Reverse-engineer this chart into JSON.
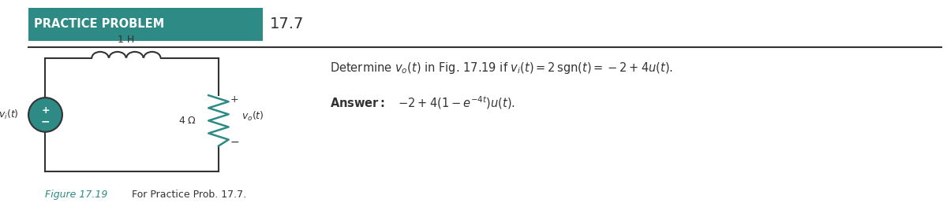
{
  "title_bg_text": "PRACTICE PROBLEM",
  "title_num": "17.7",
  "title_bg_color": "#2d8a84",
  "title_text_color": "#ffffff",
  "title_num_color": "#333333",
  "line_color": "#333333",
  "teal_color": "#2d8a84",
  "problem_text": "Determine $v_o(t)$ in Fig. 17.19 if $v_i(t) = 2\\,\\mathrm{sgn}(t) = -2 + 4u(t).$",
  "answer_label": "Answer:",
  "answer_text": "$-2 + 4(1 - e^{-4t})u(t).$",
  "figure_label": "Figure 17.19",
  "figure_caption": "For Practice Prob. 17.7.",
  "bg_color": "#ffffff"
}
